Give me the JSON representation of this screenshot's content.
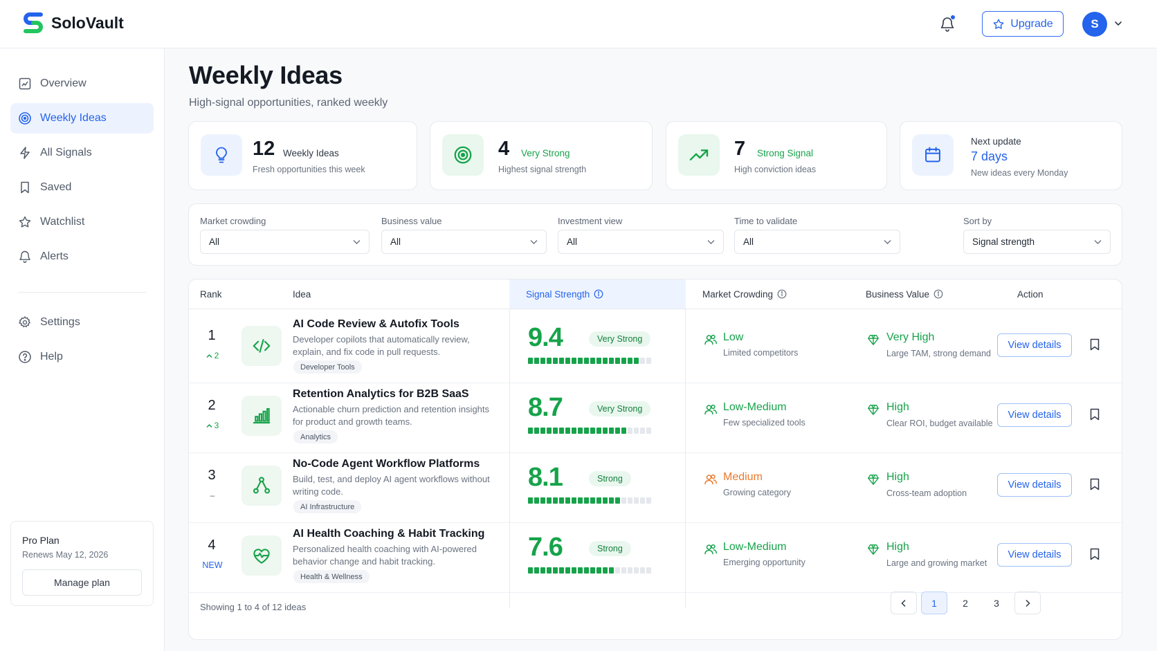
{
  "app": {
    "name": "SoloVault"
  },
  "topbar": {
    "upgrade_label": "Upgrade",
    "avatar_initial": "S"
  },
  "sidebar": {
    "items": [
      {
        "label": "Overview",
        "icon": "chart-icon"
      },
      {
        "label": "Weekly Ideas",
        "icon": "target-icon",
        "active": true
      },
      {
        "label": "All Signals",
        "icon": "bolt-icon"
      },
      {
        "label": "Saved",
        "icon": "bookmark-icon"
      },
      {
        "label": "Watchlist",
        "icon": "star-icon"
      },
      {
        "label": "Alerts",
        "icon": "bell-icon"
      }
    ],
    "bottom_items": [
      {
        "label": "Settings",
        "icon": "gear-icon"
      },
      {
        "label": "Help",
        "icon": "help-icon"
      }
    ],
    "plan": {
      "name": "Pro Plan",
      "renews": "Renews May 12, 2026",
      "manage_label": "Manage plan"
    }
  },
  "page": {
    "title": "Weekly Ideas",
    "subtitle": "High-signal opportunities, ranked weekly"
  },
  "stats": [
    {
      "value": "12",
      "label": "Weekly Ideas",
      "desc": "Fresh opportunities this week",
      "icon": "lightbulb-icon"
    },
    {
      "value": "4",
      "label": "Very Strong",
      "desc": "Highest signal strength",
      "icon": "target-icon"
    },
    {
      "value": "7",
      "label": "Strong Signal",
      "desc": "High conviction ideas",
      "icon": "trending-up-icon"
    },
    {
      "value": "7 days",
      "label": "Next update",
      "desc": "New ideas every Monday",
      "icon": "calendar-icon"
    }
  ],
  "filters": [
    {
      "label": "Market crowding",
      "value": "All"
    },
    {
      "label": "Business value",
      "value": "All"
    },
    {
      "label": "Investment view",
      "value": "All"
    },
    {
      "label": "Time to validate",
      "value": "All"
    },
    {
      "label": "Sort by",
      "value": "Signal strength"
    }
  ],
  "table": {
    "headers": {
      "rank": "Rank",
      "idea": "Idea",
      "signal": "Signal Strength",
      "crowding": "Market Crowding",
      "value": "Business Value",
      "action": "Action"
    },
    "view_label": "View details",
    "rows": [
      {
        "rank": "1",
        "delta": "2",
        "delta_type": "up",
        "icon": "code-icon",
        "title": "AI Code Review & Autofix Tools",
        "desc": "Developer copilots that automatically review, explain, and fix code in pull requests.",
        "tag": "Developer Tools",
        "score": "9.4",
        "strength": "Very Strong",
        "signal_fraction": 0.94,
        "crowding": "Low",
        "crowding_desc": "Limited competitors",
        "crowding_color": "#16a34a",
        "value": "Very High",
        "value_desc": "Large TAM, strong demand"
      },
      {
        "rank": "2",
        "delta": "3",
        "delta_type": "up",
        "icon": "bar-chart-icon",
        "title": "Retention Analytics for B2B SaaS",
        "desc": "Actionable churn prediction and retention insights for product and growth teams.",
        "tag": "Analytics",
        "score": "8.7",
        "strength": "Very Strong",
        "signal_fraction": 0.87,
        "crowding": "Low-Medium",
        "crowding_desc": "Few specialized tools",
        "crowding_color": "#16a34a",
        "value": "High",
        "value_desc": "Clear ROI, budget available"
      },
      {
        "rank": "3",
        "delta": "–",
        "delta_type": "same",
        "icon": "workflow-icon",
        "title": "No-Code Agent Workflow Platforms",
        "desc": "Build, test, and deploy AI agent workflows without writing code.",
        "tag": "AI Infrastructure",
        "score": "8.1",
        "strength": "Strong",
        "signal_fraction": 0.81,
        "crowding": "Medium",
        "crowding_desc": "Growing category",
        "crowding_color": "#ea7a2e",
        "value": "High",
        "value_desc": "Cross-team adoption"
      },
      {
        "rank": "4",
        "delta": "NEW",
        "delta_type": "new",
        "icon": "heart-pulse-icon",
        "title": "AI Health Coaching & Habit Tracking",
        "desc": "Personalized health coaching with AI-powered behavior change and habit tracking.",
        "tag": "Health & Wellness",
        "score": "7.6",
        "strength": "Strong",
        "signal_fraction": 0.76,
        "crowding": "Low-Medium",
        "crowding_desc": "Emerging opportunity",
        "crowding_color": "#16a34a",
        "value": "High",
        "value_desc": "Large and growing market"
      }
    ]
  },
  "pagination": {
    "showing": "Showing 1 to 4 of 12 ideas",
    "pages": [
      "1",
      "2",
      "3"
    ],
    "current": "1"
  },
  "colors": {
    "accent": "#2463eb",
    "green": "#16a34a",
    "orange": "#ea7a2e"
  }
}
